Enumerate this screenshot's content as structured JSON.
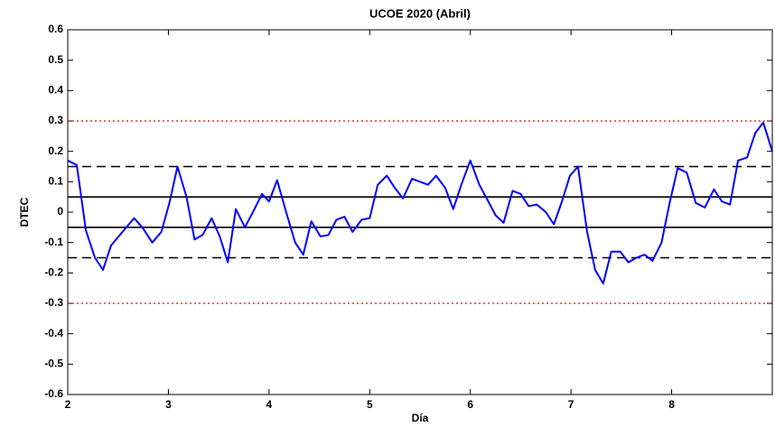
{
  "chart_data": {
    "type": "line",
    "title": "UCOE 2020 (Abril)",
    "x_label": "Día",
    "y_label": "DTEC",
    "xlim": [
      2,
      9
    ],
    "xticks": [
      2,
      3,
      4,
      5,
      6,
      7,
      8
    ],
    "ylim": [
      -0.6,
      0.6
    ],
    "yticks": [
      -0.6,
      -0.5,
      -0.4,
      -0.3,
      -0.2,
      -0.1,
      0,
      0.1,
      0.2,
      0.3,
      0.4,
      0.5,
      0.6
    ],
    "reference_lines": [
      {
        "value": 0.05,
        "style": "solid",
        "color": "#000000"
      },
      {
        "value": -0.05,
        "style": "solid",
        "color": "#000000"
      },
      {
        "value": 0.15,
        "style": "dashed",
        "color": "#000000"
      },
      {
        "value": -0.15,
        "style": "dashed",
        "color": "#000000"
      },
      {
        "value": 0.3,
        "style": "dotted",
        "color": "#ff0000"
      },
      {
        "value": -0.3,
        "style": "dotted",
        "color": "#ff0000"
      }
    ],
    "series": [
      {
        "color": "#0000ff",
        "x": [
          2.0,
          2.09,
          2.18,
          2.27,
          2.35,
          2.43,
          2.53,
          2.66,
          2.74,
          2.84,
          2.93,
          3.01,
          3.09,
          3.18,
          3.26,
          3.34,
          3.43,
          3.51,
          3.59,
          3.67,
          3.76,
          3.84,
          3.93,
          4.0,
          4.08,
          4.17,
          4.26,
          4.34,
          4.42,
          4.51,
          4.59,
          4.67,
          4.75,
          4.83,
          4.92,
          5.0,
          5.08,
          5.17,
          5.25,
          5.33,
          5.42,
          5.5,
          5.58,
          5.66,
          5.75,
          5.83,
          5.91,
          6.0,
          6.09,
          6.17,
          6.25,
          6.33,
          6.42,
          6.5,
          6.58,
          6.66,
          6.75,
          6.83,
          6.91,
          6.99,
          7.07,
          7.16,
          7.24,
          7.32,
          7.4,
          7.49,
          7.57,
          7.65,
          7.73,
          7.81,
          7.9,
          7.98,
          8.06,
          8.15,
          8.24,
          8.33,
          8.42,
          8.5,
          8.58,
          8.66,
          8.75,
          8.83,
          8.91,
          9.0
        ],
        "values": [
          0.17,
          0.155,
          -0.06,
          -0.15,
          -0.19,
          -0.11,
          -0.07,
          -0.02,
          -0.05,
          -0.1,
          -0.065,
          0.03,
          0.15,
          0.05,
          -0.09,
          -0.075,
          -0.02,
          -0.08,
          -0.165,
          0.01,
          -0.05,
          0.0,
          0.06,
          0.035,
          0.105,
          0.0,
          -0.1,
          -0.14,
          -0.03,
          -0.08,
          -0.075,
          -0.025,
          -0.015,
          -0.065,
          -0.025,
          -0.02,
          0.09,
          0.12,
          0.08,
          0.045,
          0.11,
          0.1,
          0.09,
          0.12,
          0.08,
          0.01,
          0.09,
          0.17,
          0.09,
          0.04,
          -0.01,
          -0.035,
          0.07,
          0.06,
          0.02,
          0.025,
          0.0,
          -0.04,
          0.035,
          0.12,
          0.15,
          -0.065,
          -0.19,
          -0.235,
          -0.13,
          -0.13,
          -0.165,
          -0.15,
          -0.14,
          -0.16,
          -0.1,
          0.03,
          0.145,
          0.13,
          0.03,
          0.015,
          0.075,
          0.035,
          0.025,
          0.17,
          0.18,
          0.26,
          0.295,
          0.2
        ]
      }
    ]
  }
}
